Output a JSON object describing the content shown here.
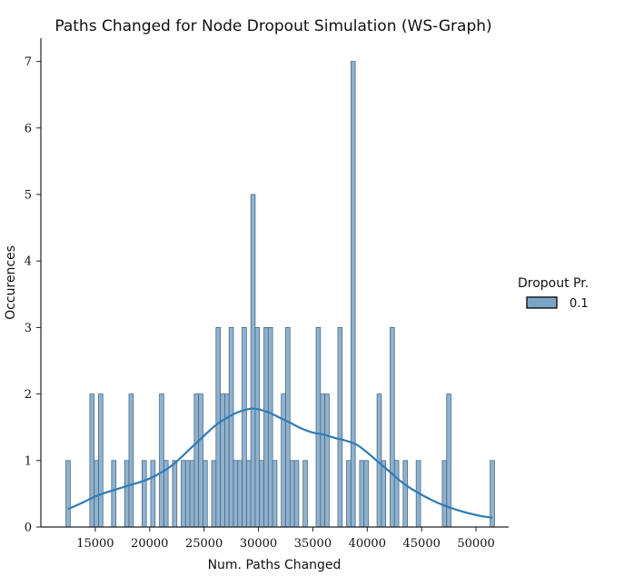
{
  "chart_data": {
    "type": "bar",
    "title": "Paths Changed for Node Dropout Simulation (WS-Graph)",
    "xlabel": "Num. Paths Changed",
    "ylabel": "Occurences",
    "xlim": [
      10000,
      53000
    ],
    "ylim": [
      0,
      7.35
    ],
    "x_ticks": [
      15000,
      20000,
      25000,
      30000,
      35000,
      40000,
      45000,
      50000
    ],
    "x_tick_labels": [
      "15000",
      "20000",
      "25000",
      "30000",
      "35000",
      "40000",
      "45000",
      "50000"
    ],
    "y_ticks": [
      0,
      1,
      2,
      3,
      4,
      5,
      6,
      7
    ],
    "y_tick_labels": [
      "0",
      "1",
      "2",
      "3",
      "4",
      "5",
      "6",
      "7"
    ],
    "bin_width": 400,
    "bar_color": "#7ba4c7",
    "edge_color": "#4a6a85",
    "kde_color": "#2f7bb5",
    "legend": {
      "title": "Dropout Pr.",
      "entries": [
        "0.1"
      ]
    },
    "bins": [
      {
        "x": 12500,
        "count": 1
      },
      {
        "x": 14700,
        "count": 2
      },
      {
        "x": 15100,
        "count": 1
      },
      {
        "x": 15500,
        "count": 2
      },
      {
        "x": 16700,
        "count": 1
      },
      {
        "x": 17900,
        "count": 1
      },
      {
        "x": 18300,
        "count": 2
      },
      {
        "x": 19500,
        "count": 1
      },
      {
        "x": 20300,
        "count": 1
      },
      {
        "x": 21100,
        "count": 2
      },
      {
        "x": 21500,
        "count": 1
      },
      {
        "x": 22300,
        "count": 1
      },
      {
        "x": 23100,
        "count": 1
      },
      {
        "x": 23500,
        "count": 1
      },
      {
        "x": 23900,
        "count": 1
      },
      {
        "x": 24300,
        "count": 2
      },
      {
        "x": 24700,
        "count": 2
      },
      {
        "x": 25100,
        "count": 1
      },
      {
        "x": 25900,
        "count": 1
      },
      {
        "x": 26300,
        "count": 3
      },
      {
        "x": 26700,
        "count": 2
      },
      {
        "x": 27100,
        "count": 2
      },
      {
        "x": 27500,
        "count": 3
      },
      {
        "x": 27900,
        "count": 1
      },
      {
        "x": 28300,
        "count": 1
      },
      {
        "x": 28700,
        "count": 3
      },
      {
        "x": 29100,
        "count": 1
      },
      {
        "x": 29500,
        "count": 5
      },
      {
        "x": 29900,
        "count": 3
      },
      {
        "x": 30300,
        "count": 1
      },
      {
        "x": 30700,
        "count": 3
      },
      {
        "x": 31100,
        "count": 3
      },
      {
        "x": 31500,
        "count": 1
      },
      {
        "x": 32300,
        "count": 2
      },
      {
        "x": 32700,
        "count": 3
      },
      {
        "x": 33100,
        "count": 1
      },
      {
        "x": 33500,
        "count": 1
      },
      {
        "x": 34300,
        "count": 1
      },
      {
        "x": 35500,
        "count": 3
      },
      {
        "x": 35900,
        "count": 2
      },
      {
        "x": 36300,
        "count": 2
      },
      {
        "x": 37500,
        "count": 3
      },
      {
        "x": 38300,
        "count": 1
      },
      {
        "x": 38700,
        "count": 7
      },
      {
        "x": 39500,
        "count": 1
      },
      {
        "x": 39900,
        "count": 1
      },
      {
        "x": 41100,
        "count": 2
      },
      {
        "x": 41500,
        "count": 1
      },
      {
        "x": 42300,
        "count": 3
      },
      {
        "x": 42700,
        "count": 1
      },
      {
        "x": 43500,
        "count": 1
      },
      {
        "x": 44700,
        "count": 1
      },
      {
        "x": 47100,
        "count": 1
      },
      {
        "x": 47500,
        "count": 2
      },
      {
        "x": 51500,
        "count": 1
      }
    ],
    "kde": {
      "x": [
        12500,
        14000,
        15000,
        16000,
        18000,
        20000,
        22000,
        24000,
        26000,
        27000,
        28000,
        29000,
        29500,
        30000,
        31000,
        32000,
        33000,
        34000,
        35000,
        36000,
        37000,
        38000,
        39000,
        40000,
        41000,
        42000,
        43000,
        44000,
        46000,
        48000,
        50000,
        51500
      ],
      "y": [
        0.27,
        0.38,
        0.46,
        0.52,
        0.62,
        0.73,
        0.92,
        1.22,
        1.52,
        1.63,
        1.72,
        1.77,
        1.78,
        1.77,
        1.72,
        1.64,
        1.56,
        1.48,
        1.42,
        1.39,
        1.34,
        1.3,
        1.24,
        1.12,
        0.98,
        0.84,
        0.7,
        0.58,
        0.4,
        0.27,
        0.18,
        0.14
      ]
    }
  }
}
